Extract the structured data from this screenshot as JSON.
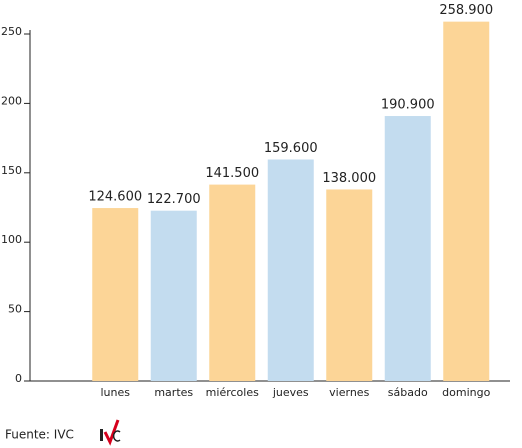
{
  "chart_data": {
    "type": "bar",
    "categories": [
      "lunes",
      "martes",
      "miércoles",
      "jueves",
      "viernes",
      "sábado",
      "domingo"
    ],
    "values": [
      124.6,
      122.7,
      141.5,
      159.6,
      138.0,
      190.9,
      258.9
    ],
    "value_labels": [
      "124.600",
      "122.700",
      "141.500",
      "159.600",
      "138.000",
      "190.900",
      "258.900"
    ],
    "colors": [
      "#fcd597",
      "#c3dcef",
      "#fcd597",
      "#c3dcef",
      "#fcd597",
      "#c3dcef",
      "#fcd597"
    ],
    "ylim": [
      0,
      250
    ],
    "yticks": [
      0,
      50,
      100,
      150,
      200,
      250
    ],
    "grid": false,
    "source": "Fuente: IVC"
  }
}
